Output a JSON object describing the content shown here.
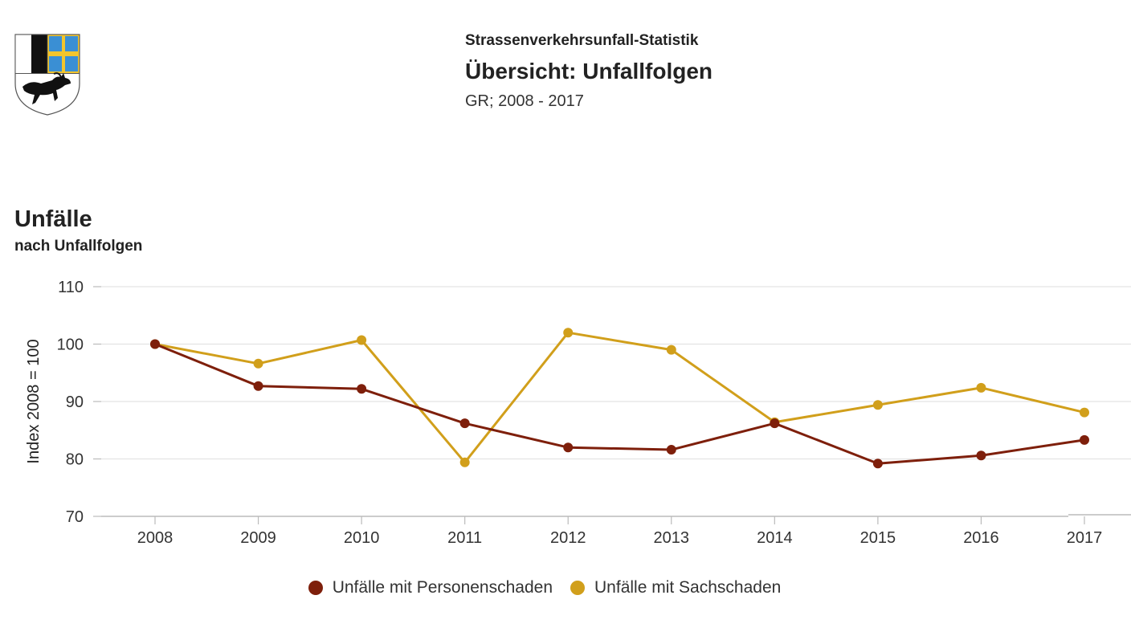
{
  "header": {
    "title": "Strassenverkehrsunfall-Statistik",
    "subtitle": "Übersicht: Unfallfolgen",
    "range": "GR; 2008 - 2017"
  },
  "logo": {
    "name": "graubuenden-coat-of-arms"
  },
  "chart_data": {
    "type": "line",
    "title": "Unfälle",
    "subtitle": "nach Unfallfolgen",
    "xlabel": "",
    "ylabel": "Index 2008 = 100",
    "ylim": [
      70,
      110
    ],
    "yticks": [
      70,
      80,
      90,
      100,
      110
    ],
    "grid": true,
    "legend_position": "bottom",
    "x": [
      "2008",
      "2009",
      "2010",
      "2011",
      "2012",
      "2013",
      "2014",
      "2015",
      "2016",
      "2017"
    ],
    "series": [
      {
        "name": "Unfälle mit Personenschaden",
        "color": "#7e1f0b",
        "values": [
          100,
          92.7,
          92.2,
          86.2,
          82.0,
          81.6,
          86.2,
          79.2,
          80.6,
          83.3
        ]
      },
      {
        "name": "Unfälle mit Sachschaden",
        "color": "#d19f1b",
        "values": [
          100,
          96.6,
          100.7,
          79.4,
          102.0,
          99.0,
          86.4,
          89.4,
          92.4,
          88.1
        ]
      }
    ]
  }
}
